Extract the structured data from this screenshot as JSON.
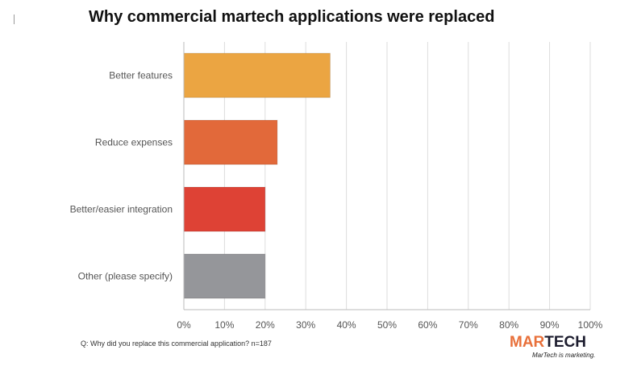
{
  "colors": {
    "grid": "#dddddd",
    "axis": "#bbbbbb",
    "label": "#555555",
    "logo_dark": "#1c1c2e",
    "logo_orange": "#e8703a"
  },
  "chart_data": {
    "type": "bar",
    "orientation": "horizontal",
    "title": "Why commercial martech applications were replaced",
    "categories": [
      "Better features",
      "Reduce expenses",
      "Better/easier integration",
      "Other (please specify)"
    ],
    "values": [
      36,
      23,
      20,
      20
    ],
    "bar_colors": [
      "#eba542",
      "#e2693a",
      "#de4235",
      "#95969a"
    ],
    "xlim": [
      0,
      100
    ],
    "x_ticks": [
      0,
      10,
      20,
      30,
      40,
      50,
      60,
      70,
      80,
      90,
      100
    ],
    "x_tick_labels": [
      "0%",
      "10%",
      "20%",
      "30%",
      "40%",
      "50%",
      "60%",
      "70%",
      "80%",
      "90%",
      "100%"
    ],
    "grid": true,
    "legend": "none"
  },
  "footnote": "Q: Why did you replace this commercial application? n=187",
  "logo": {
    "part1": "MAR",
    "part2": "TECH",
    "tagline": "MarTech is marketing."
  }
}
